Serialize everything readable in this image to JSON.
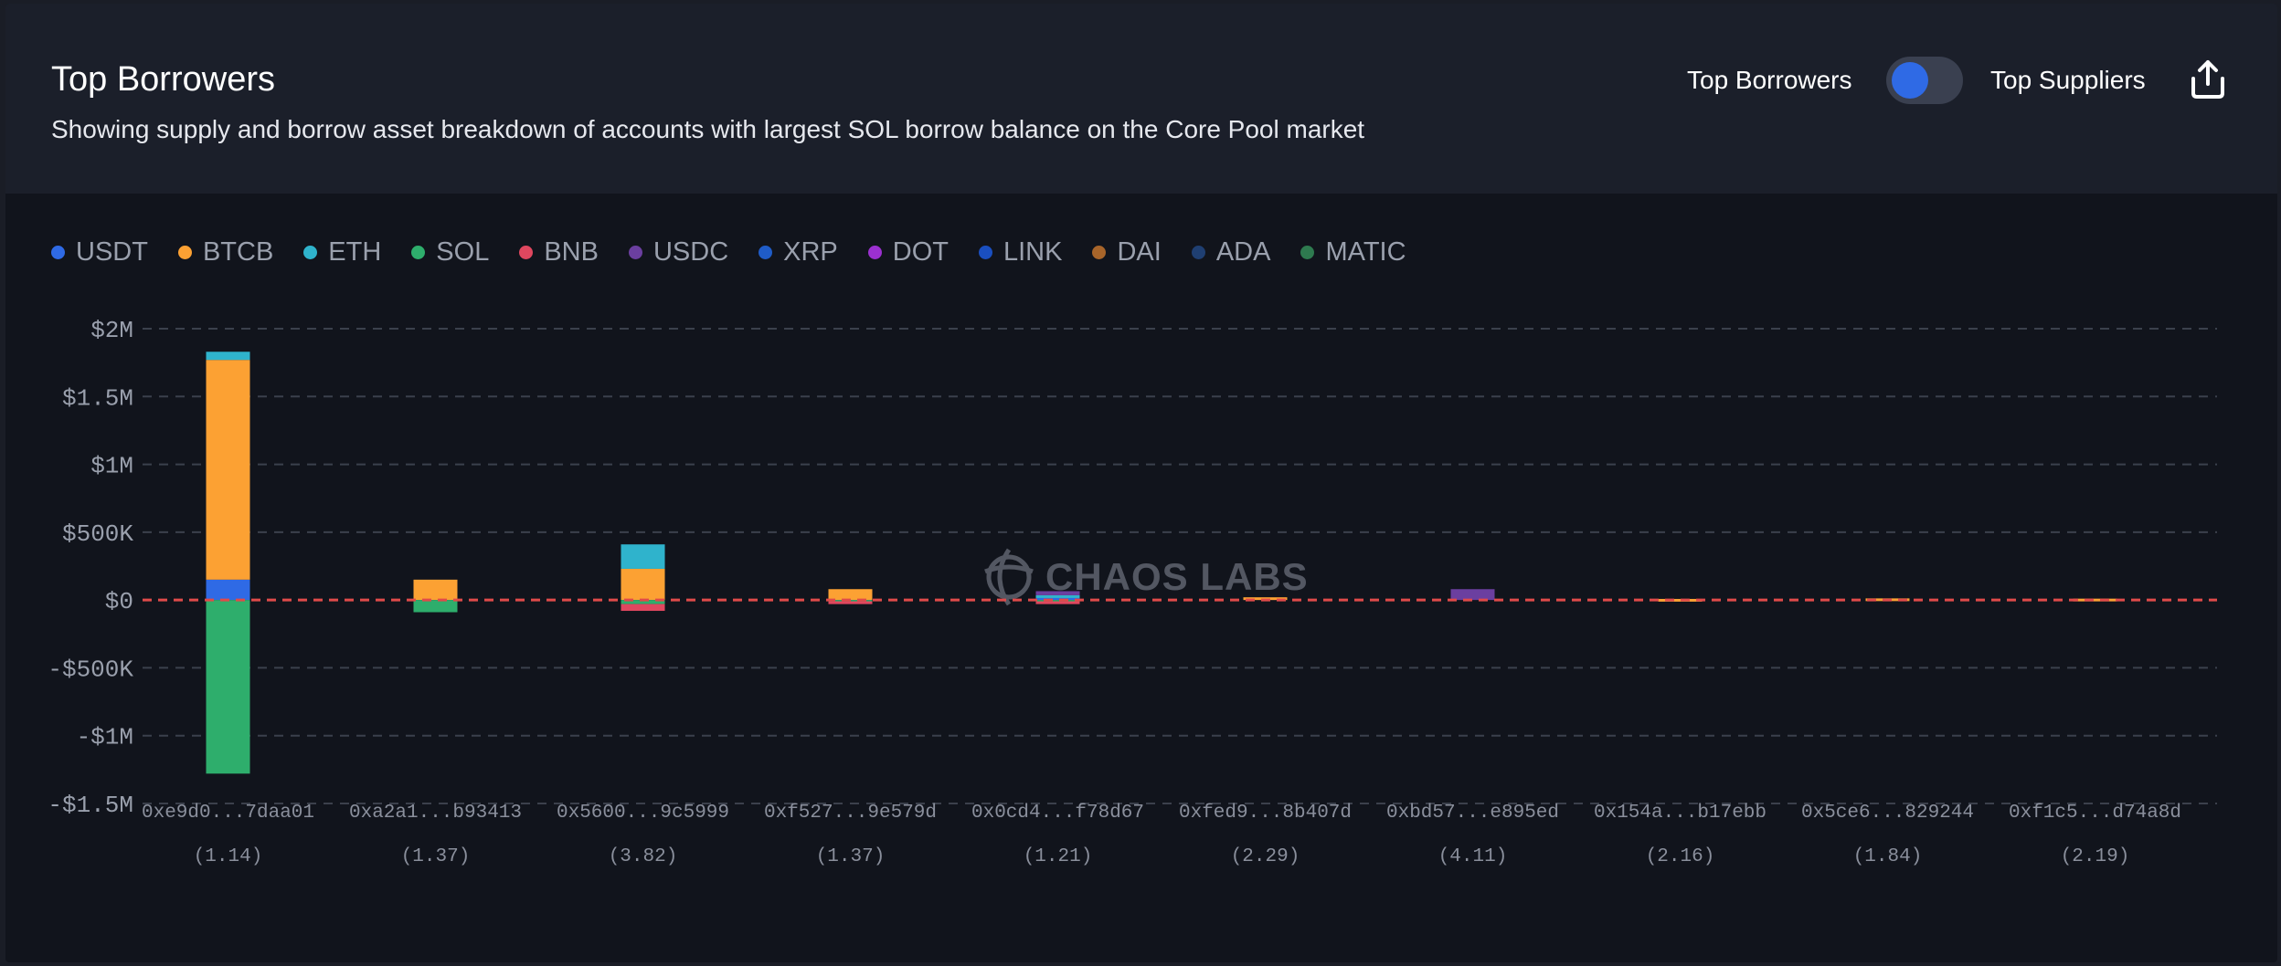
{
  "header": {
    "title": "Top Borrowers",
    "subtitle": "Showing supply and borrow asset breakdown of accounts with largest SOL borrow balance on the Core Pool market",
    "toggle_left_label": "Top Borrowers",
    "toggle_right_label": "Top Suppliers",
    "share_icon": "share-upload-icon"
  },
  "watermark": {
    "text": "CHAOS LABS",
    "icon": "chaos-labs-logo-icon"
  },
  "chart_data": {
    "type": "bar",
    "stacked": true,
    "title": "Top Borrowers",
    "ylim": [
      -1500000,
      2000000
    ],
    "yticks": [
      {
        "value": 2000000,
        "label": "$2M"
      },
      {
        "value": 1500000,
        "label": "$1.5M"
      },
      {
        "value": 1000000,
        "label": "$1M"
      },
      {
        "value": 500000,
        "label": "$500K"
      },
      {
        "value": 0,
        "label": "$0"
      },
      {
        "value": -500000,
        "label": "-$500K"
      },
      {
        "value": -1000000,
        "label": "-$1M"
      },
      {
        "value": -1500000,
        "label": "-$1.5M"
      }
    ],
    "grid": true,
    "legend_position": "top-left",
    "zero_line_color": "#e04a4a",
    "categories": [
      "0xe9d0...7daa01",
      "0xa2a1...b93413",
      "0x5600...9c5999",
      "0xf527...9e579d",
      "0x0cd4...f78d67",
      "0xfed9...8b407d",
      "0xbd57...e895ed",
      "0x154a...b17ebb",
      "0x5ce6...829244",
      "0xf1c5...d74a8d"
    ],
    "sublabels": [
      "(1.14)",
      "(1.37)",
      "(3.82)",
      "(1.37)",
      "(1.21)",
      "(2.29)",
      "(4.11)",
      "(2.16)",
      "(1.84)",
      "(2.19)"
    ],
    "series": [
      {
        "name": "USDT",
        "color": "#2f6ae5",
        "values": [
          150000,
          0,
          0,
          0,
          20000,
          0,
          0,
          0,
          0,
          0
        ]
      },
      {
        "name": "BTCB",
        "color": "#fca133",
        "values": [
          1620000,
          150000,
          230000,
          80000,
          0,
          20000,
          0,
          8000,
          12000,
          10000
        ]
      },
      {
        "name": "ETH",
        "color": "#2fb3cc",
        "values": [
          60000,
          0,
          180000,
          0,
          15000,
          0,
          0,
          0,
          0,
          0
        ]
      },
      {
        "name": "SOL",
        "color": "#2eae6c",
        "values": [
          -1280000,
          -90000,
          -30000,
          -10000,
          -10000,
          0,
          0,
          0,
          0,
          0
        ]
      },
      {
        "name": "BNB",
        "color": "#e0475f",
        "values": [
          0,
          0,
          -50000,
          -20000,
          -20000,
          0,
          0,
          0,
          0,
          0
        ]
      },
      {
        "name": "USDC",
        "color": "#6b3fa0",
        "values": [
          0,
          0,
          0,
          0,
          30000,
          0,
          80000,
          0,
          0,
          0
        ]
      },
      {
        "name": "XRP",
        "color": "#1f5cc8",
        "values": [
          0,
          0,
          0,
          0,
          0,
          0,
          0,
          0,
          0,
          0
        ]
      },
      {
        "name": "DOT",
        "color": "#9b30d0",
        "values": [
          0,
          0,
          0,
          0,
          0,
          0,
          0,
          0,
          0,
          0
        ]
      },
      {
        "name": "LINK",
        "color": "#1a4fc0",
        "values": [
          0,
          0,
          0,
          0,
          0,
          0,
          0,
          0,
          0,
          0
        ]
      },
      {
        "name": "DAI",
        "color": "#a8652a",
        "values": [
          0,
          0,
          0,
          0,
          0,
          0,
          0,
          0,
          0,
          0
        ]
      },
      {
        "name": "ADA",
        "color": "#1f3f72",
        "values": [
          0,
          0,
          0,
          0,
          0,
          0,
          0,
          0,
          0,
          0
        ]
      },
      {
        "name": "MATIC",
        "color": "#2e7a4f",
        "values": [
          0,
          0,
          0,
          0,
          0,
          0,
          0,
          0,
          0,
          0
        ]
      }
    ]
  }
}
